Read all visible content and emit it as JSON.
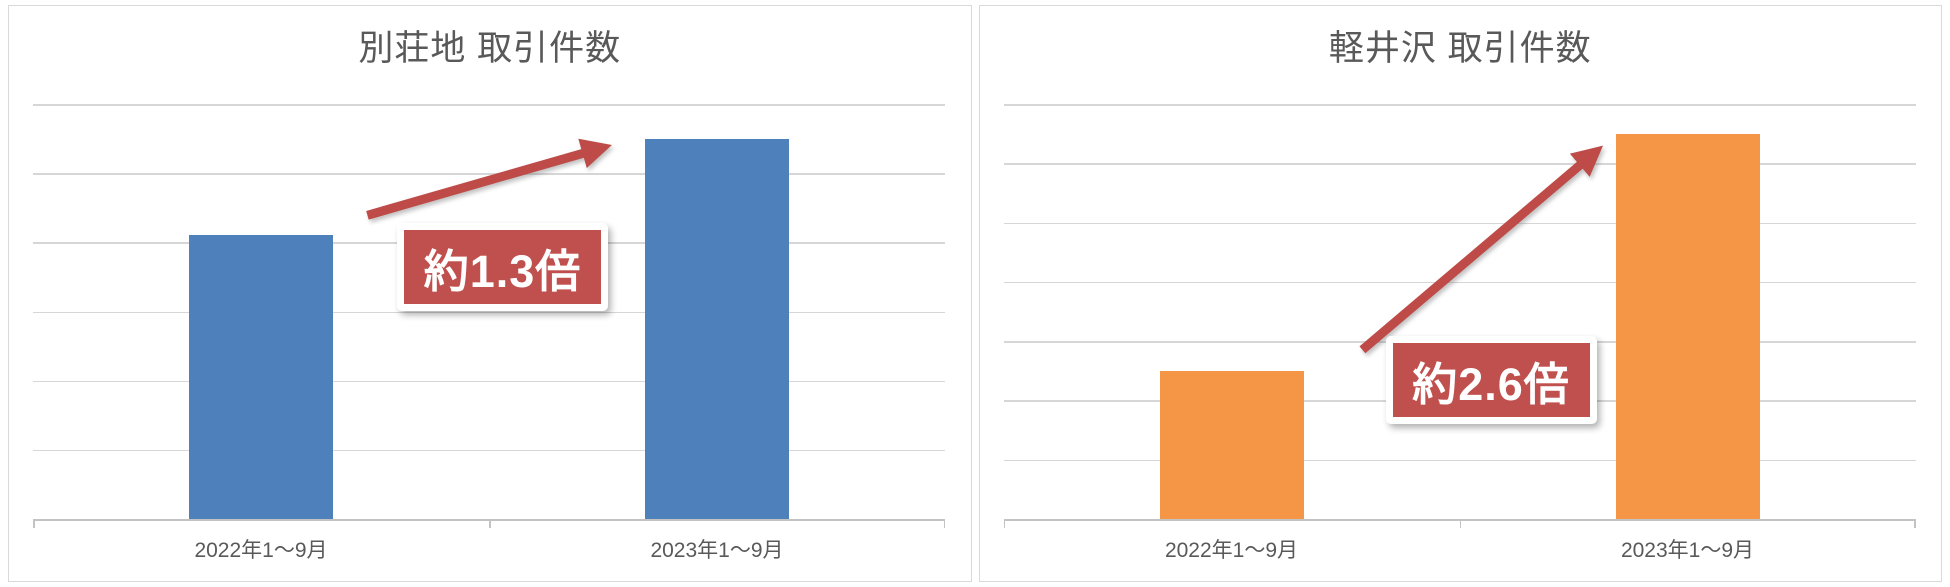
{
  "styles": {
    "title_color": "#595959",
    "axis_label_color": "#595959",
    "gridline_color": "#D6D6D6",
    "axis_line_color": "#C3C3C3",
    "panel_border": "#D9D9D9",
    "page_bg": "#FFFFFF"
  },
  "chart_data": [
    {
      "type": "bar",
      "title": "別荘地 取引件数",
      "categories": [
        "2022年1〜9月",
        "2023年1〜9月"
      ],
      "values": [
        4.1,
        5.5
      ],
      "values_unit": "gridline-units (y axis has no tick labels)",
      "ylim": [
        0,
        6
      ],
      "gridline_count": 6,
      "grid": true,
      "yticks_labeled": false,
      "legend": false,
      "bar_color": "#4E80BC",
      "annotation": {
        "label": "約1.3倍",
        "fill": "#C0504D",
        "text_color": "#FFFFFF",
        "arrow_color": "#BE4B48"
      }
    },
    {
      "type": "bar",
      "title": "軽井沢 取引件数",
      "categories": [
        "2022年1〜9月",
        "2023年1〜9月"
      ],
      "values": [
        2.5,
        6.5
      ],
      "values_unit": "gridline-units (y axis has no tick labels)",
      "ylim": [
        0,
        7
      ],
      "gridline_count": 7,
      "grid": true,
      "yticks_labeled": false,
      "legend": false,
      "bar_color": "#F59546",
      "annotation": {
        "label": "約2.6倍",
        "fill": "#C0504D",
        "text_color": "#FFFFFF",
        "arrow_color": "#BE4B48"
      }
    }
  ]
}
